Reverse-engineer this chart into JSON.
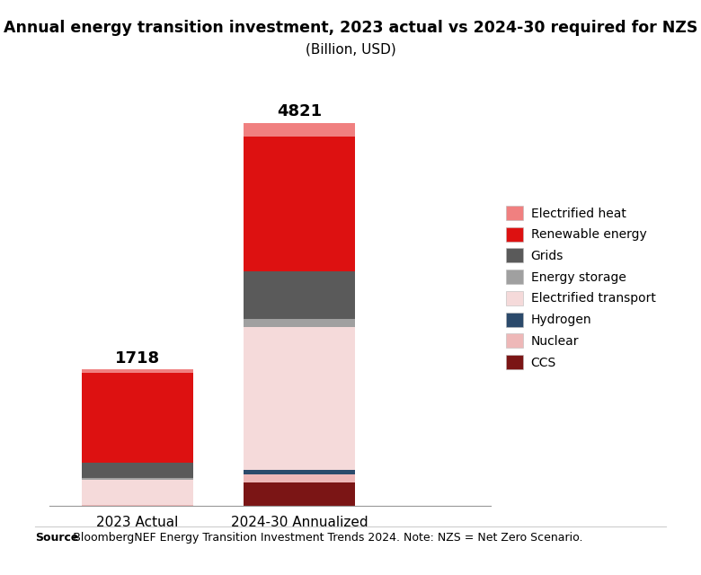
{
  "title_line1": "Annual energy transition investment, 2023 actual vs 2024-30 required for NZS",
  "title_line2": "(Billion, USD)",
  "categories": [
    "2023 Actual",
    "2024-30 Annualized"
  ],
  "totals": [
    1718,
    4821
  ],
  "segments": [
    {
      "label": "Electrified heat",
      "color": "#F08080",
      "values": [
        38,
        171
      ]
    },
    {
      "label": "Renewable energy",
      "color": "#DD1111",
      "values": [
        1140,
        1700
      ]
    },
    {
      "label": "Grids",
      "color": "#5A5A5A",
      "values": [
        190,
        600
      ]
    },
    {
      "label": "Energy storage",
      "color": "#A0A0A0",
      "values": [
        25,
        100
      ]
    },
    {
      "label": "Electrified transport",
      "color": "#F5DADA",
      "values": [
        310,
        1800
      ]
    },
    {
      "label": "Hydrogen",
      "color": "#2B4A6B",
      "values": [
        5,
        50
      ]
    },
    {
      "label": "Nuclear",
      "color": "#EEB8B8",
      "values": [
        5,
        100
      ]
    },
    {
      "label": "CCS",
      "color": "#7B1515",
      "values": [
        5,
        300
      ]
    }
  ],
  "source_bold": "Source",
  "source_text": ": BloombergNEF Energy Transition Investment Trends 2024. Note: NZS = Net Zero Scenario.",
  "bar_width": 0.38,
  "background_color": "#FFFFFF",
  "title_fontsize": 12.5,
  "subtitle_fontsize": 11,
  "tick_fontsize": 11,
  "legend_fontsize": 10,
  "source_fontsize": 9,
  "total_label_fontsize": 13
}
